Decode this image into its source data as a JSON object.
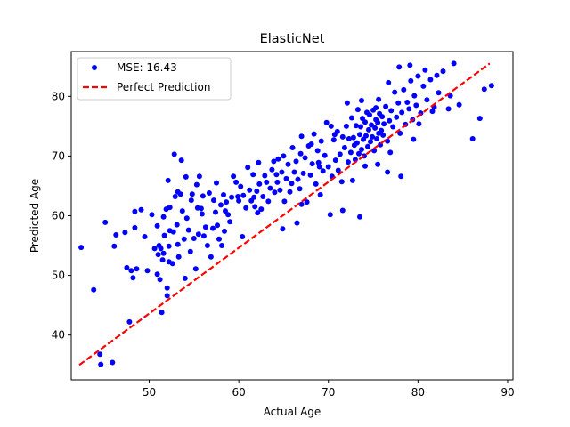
{
  "chart_data": {
    "type": "scatter",
    "title": "ElasticNet",
    "xlabel": "Actual Age",
    "ylabel": "Predicted Age",
    "xlim": [
      41.3,
      90.6
    ],
    "ylim": [
      32.5,
      87.5
    ],
    "x_ticks": [
      50,
      60,
      70,
      80,
      90
    ],
    "y_ticks": [
      40,
      50,
      60,
      70,
      80
    ],
    "grid": false,
    "legend_position": "upper-left",
    "colors": {
      "points": "#0000ff",
      "line": "#ff0000"
    },
    "series": [
      {
        "name": "MSE: 16.43",
        "kind": "scatter",
        "points": [
          [
            42.4,
            54.7
          ],
          [
            43.8,
            47.6
          ],
          [
            44.5,
            36.8
          ],
          [
            44.6,
            35.1
          ],
          [
            45.1,
            58.9
          ],
          [
            45.9,
            35.4
          ],
          [
            46.1,
            54.9
          ],
          [
            46.3,
            56.8
          ],
          [
            47.3,
            57.2
          ],
          [
            47.5,
            51.3
          ],
          [
            47.8,
            42.2
          ],
          [
            48.0,
            50.8
          ],
          [
            48.2,
            49.6
          ],
          [
            48.4,
            58.0
          ],
          [
            48.4,
            60.7
          ],
          [
            48.6,
            51.1
          ],
          [
            49.1,
            61.0
          ],
          [
            49.5,
            56.5
          ],
          [
            49.8,
            50.8
          ],
          [
            50.3,
            60.2
          ],
          [
            50.6,
            54.5
          ],
          [
            50.9,
            58.3
          ],
          [
            50.9,
            50.2
          ],
          [
            51.0,
            53.5
          ],
          [
            51.1,
            55.0
          ],
          [
            51.2,
            49.3
          ],
          [
            51.3,
            54.5
          ],
          [
            51.4,
            43.8
          ],
          [
            51.5,
            52.6
          ],
          [
            51.6,
            59.8
          ],
          [
            51.6,
            53.7
          ],
          [
            51.7,
            56.7
          ],
          [
            51.9,
            61.1
          ],
          [
            52.0,
            47.9
          ],
          [
            52.0,
            46.6
          ],
          [
            52.1,
            65.9
          ],
          [
            52.2,
            54.9
          ],
          [
            52.2,
            52.3
          ],
          [
            52.3,
            57.5
          ],
          [
            52.3,
            61.4
          ],
          [
            52.6,
            52.0
          ],
          [
            52.7,
            57.3
          ],
          [
            52.8,
            70.3
          ],
          [
            52.9,
            63.2
          ],
          [
            53.1,
            58.5
          ],
          [
            53.2,
            55.2
          ],
          [
            53.3,
            53.1
          ],
          [
            53.5,
            63.6
          ],
          [
            53.6,
            69.3
          ],
          [
            53.7,
            60.8
          ],
          [
            53.9,
            56.1
          ],
          [
            54.0,
            49.5
          ],
          [
            54.1,
            66.5
          ],
          [
            54.2,
            59.6
          ],
          [
            54.4,
            57.6
          ],
          [
            54.6,
            54.0
          ],
          [
            54.7,
            62.6
          ],
          [
            54.8,
            63.6
          ],
          [
            55.0,
            56.2
          ],
          [
            55.2,
            51.1
          ],
          [
            55.4,
            61.3
          ],
          [
            55.5,
            56.9
          ],
          [
            55.6,
            66.6
          ],
          [
            55.8,
            61.2
          ],
          [
            55.9,
            60.3
          ],
          [
            56.0,
            63.3
          ],
          [
            56.1,
            56.6
          ],
          [
            56.3,
            58.1
          ],
          [
            56.5,
            55.0
          ],
          [
            56.7,
            63.8
          ],
          [
            56.9,
            53.1
          ],
          [
            57.1,
            57.9
          ],
          [
            57.2,
            62.6
          ],
          [
            57.4,
            60.6
          ],
          [
            57.6,
            58.4
          ],
          [
            57.8,
            56.1
          ],
          [
            58.0,
            61.8
          ],
          [
            58.1,
            55.0
          ],
          [
            58.3,
            63.5
          ],
          [
            58.4,
            57.4
          ],
          [
            58.6,
            62.3
          ],
          [
            58.8,
            60.2
          ],
          [
            59.0,
            59.0
          ],
          [
            59.2,
            63.1
          ],
          [
            59.4,
            66.6
          ],
          [
            59.7,
            65.6
          ],
          [
            59.9,
            63.2
          ],
          [
            60.0,
            62.5
          ],
          [
            60.2,
            64.9
          ],
          [
            60.5,
            63.4
          ],
          [
            60.8,
            61.3
          ],
          [
            61.0,
            68.1
          ],
          [
            61.2,
            64.3
          ],
          [
            61.4,
            62.5
          ],
          [
            61.6,
            66.9
          ],
          [
            61.8,
            61.5
          ],
          [
            62.0,
            64.1
          ],
          [
            62.2,
            68.9
          ],
          [
            62.3,
            65.3
          ],
          [
            62.5,
            61.1
          ],
          [
            62.7,
            63.2
          ],
          [
            62.9,
            66.7
          ],
          [
            63.1,
            65.6
          ],
          [
            63.3,
            62.4
          ],
          [
            63.5,
            64.6
          ],
          [
            63.7,
            67.7
          ],
          [
            63.9,
            69.1
          ],
          [
            64.0,
            63.9
          ],
          [
            64.2,
            66.9
          ],
          [
            64.4,
            69.5
          ],
          [
            64.6,
            64.3
          ],
          [
            64.8,
            67.3
          ],
          [
            65.0,
            70.0
          ],
          [
            65.1,
            62.4
          ],
          [
            65.3,
            66.2
          ],
          [
            65.5,
            68.6
          ],
          [
            65.7,
            64.0
          ],
          [
            65.9,
            65.4
          ],
          [
            66.0,
            71.4
          ],
          [
            66.2,
            67.3
          ],
          [
            66.4,
            69.1
          ],
          [
            66.6,
            66.1
          ],
          [
            66.8,
            64.5
          ],
          [
            67.0,
            73.3
          ],
          [
            67.2,
            67.1
          ],
          [
            67.4,
            69.7
          ],
          [
            67.6,
            62.3
          ],
          [
            67.8,
            71.7
          ],
          [
            68.0,
            66.8
          ],
          [
            68.2,
            68.7
          ],
          [
            68.4,
            73.7
          ],
          [
            68.6,
            65.3
          ],
          [
            68.8,
            70.9
          ],
          [
            69.0,
            68.2
          ],
          [
            69.2,
            72.5
          ],
          [
            69.4,
            67.5
          ],
          [
            69.6,
            70.1
          ],
          [
            69.8,
            75.6
          ],
          [
            70.0,
            68.2
          ],
          [
            70.2,
            60.2
          ],
          [
            70.4,
            66.6
          ],
          [
            70.6,
            72.7
          ],
          [
            70.8,
            69.3
          ],
          [
            71.0,
            74.1
          ],
          [
            71.1,
            67.6
          ],
          [
            71.3,
            70.3
          ],
          [
            71.5,
            65.7
          ],
          [
            71.6,
            73.2
          ],
          [
            71.8,
            71.4
          ],
          [
            72.0,
            75.0
          ],
          [
            72.2,
            69.0
          ],
          [
            72.3,
            72.9
          ],
          [
            72.5,
            70.6
          ],
          [
            72.6,
            76.4
          ],
          [
            72.8,
            73.1
          ],
          [
            72.9,
            71.8
          ],
          [
            73.0,
            69.4
          ],
          [
            73.1,
            75.1
          ],
          [
            73.2,
            72.2
          ],
          [
            73.3,
            77.8
          ],
          [
            73.4,
            70.4
          ],
          [
            73.5,
            73.6
          ],
          [
            73.6,
            74.9
          ],
          [
            73.7,
            71.1
          ],
          [
            73.8,
            76.3
          ],
          [
            73.9,
            72.8
          ],
          [
            74.0,
            70.0
          ],
          [
            74.1,
            75.7
          ],
          [
            74.2,
            73.4
          ],
          [
            74.3,
            77.3
          ],
          [
            74.4,
            71.6
          ],
          [
            74.5,
            74.4
          ],
          [
            74.6,
            76.9
          ],
          [
            74.7,
            72.4
          ],
          [
            74.8,
            75.2
          ],
          [
            74.9,
            73.2
          ],
          [
            75.0,
            77.7
          ],
          [
            75.1,
            70.9
          ],
          [
            75.2,
            74.7
          ],
          [
            75.3,
            76.1
          ],
          [
            75.4,
            72.9
          ],
          [
            75.5,
            75.6
          ],
          [
            75.6,
            73.8
          ],
          [
            75.7,
            77.1
          ],
          [
            75.8,
            71.9
          ],
          [
            75.9,
            74.3
          ],
          [
            76.0,
            76.6
          ],
          [
            76.1,
            73.5
          ],
          [
            76.2,
            75.4
          ],
          [
            76.4,
            78.3
          ],
          [
            76.6,
            72.5
          ],
          [
            76.8,
            75.9
          ],
          [
            77.0,
            77.6
          ],
          [
            77.2,
            74.9
          ],
          [
            77.4,
            80.7
          ],
          [
            77.6,
            76.5
          ],
          [
            77.8,
            78.9
          ],
          [
            78.0,
            73.8
          ],
          [
            78.2,
            77.3
          ],
          [
            78.4,
            81.1
          ],
          [
            78.6,
            75.3
          ],
          [
            78.8,
            79.0
          ],
          [
            79.0,
            77.9
          ],
          [
            79.2,
            82.6
          ],
          [
            79.4,
            76.1
          ],
          [
            79.6,
            80.1
          ],
          [
            79.8,
            78.5
          ],
          [
            80.0,
            83.4
          ],
          [
            80.3,
            77.2
          ],
          [
            80.6,
            81.7
          ],
          [
            81.0,
            79.4
          ],
          [
            81.4,
            82.8
          ],
          [
            81.8,
            78.2
          ],
          [
            82.3,
            80.6
          ],
          [
            82.8,
            84.2
          ],
          [
            83.4,
            77.9
          ],
          [
            84.0,
            85.5
          ],
          [
            84.6,
            78.6
          ],
          [
            86.1,
            72.9
          ],
          [
            86.9,
            76.3
          ],
          [
            87.4,
            81.2
          ],
          [
            88.2,
            81.8
          ],
          [
            75.5,
            68.6
          ],
          [
            76.6,
            67.3
          ],
          [
            73.5,
            59.8
          ],
          [
            71.6,
            60.9
          ],
          [
            66.5,
            58.8
          ],
          [
            61.7,
            63.1
          ],
          [
            58.5,
            60.8
          ],
          [
            55.3,
            65.2
          ],
          [
            53.2,
            64.0
          ],
          [
            57.5,
            65.5
          ],
          [
            62.1,
            60.5
          ],
          [
            64.9,
            57.8
          ],
          [
            60.4,
            56.5
          ],
          [
            68.9,
            68.9
          ],
          [
            70.7,
            73.6
          ],
          [
            72.1,
            78.9
          ],
          [
            75.3,
            78.1
          ],
          [
            74.1,
            68.3
          ],
          [
            76.9,
            70.6
          ],
          [
            78.1,
            66.6
          ],
          [
            79.5,
            72.8
          ],
          [
            81.6,
            77.5
          ],
          [
            83.6,
            80.1
          ],
          [
            80.8,
            84.4
          ],
          [
            77.9,
            84.9
          ],
          [
            75.6,
            79.5
          ],
          [
            72.7,
            65.9
          ],
          [
            69.1,
            63.5
          ],
          [
            67.0,
            61.9
          ],
          [
            64.3,
            65.6
          ],
          [
            66.9,
            70.4
          ],
          [
            68.1,
            72.0
          ],
          [
            70.3,
            75.0
          ],
          [
            73.7,
            79.3
          ],
          [
            76.7,
            82.3
          ],
          [
            79.1,
            85.2
          ],
          [
            82.1,
            83.5
          ],
          [
            80.1,
            75.4
          ]
        ]
      },
      {
        "name": "Perfect Prediction",
        "kind": "line",
        "points": [
          [
            42.2,
            35.0
          ],
          [
            88.0,
            85.5
          ]
        ]
      }
    ]
  }
}
